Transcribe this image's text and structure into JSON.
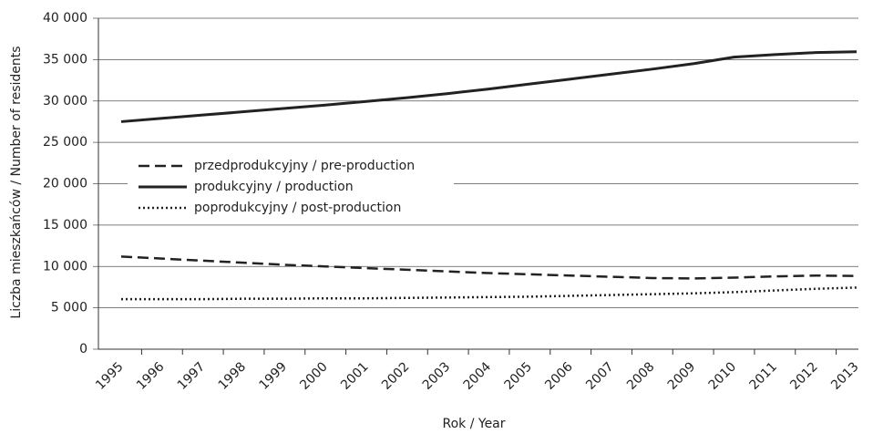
{
  "chart_data": {
    "type": "line",
    "y_label": "Liczba mieszkańców / Number of residents",
    "x_label": "Rok / Year",
    "categories": [
      "1995",
      "1996",
      "1997",
      "1998",
      "1999",
      "2000",
      "2001",
      "2002",
      "2003",
      "2004",
      "2005",
      "2006",
      "2007",
      "2008",
      "2009",
      "2010",
      "2011",
      "2012",
      "2013"
    ],
    "series": [
      {
        "name": "przedprodukcyjny / pre-production",
        "color": "#222222",
        "dash": "12,6",
        "values": [
          11200,
          10950,
          10700,
          10450,
          10200,
          10000,
          9800,
          9600,
          9400,
          9200,
          9050,
          8900,
          8750,
          8600,
          8550,
          8650,
          8800,
          8900,
          8850
        ]
      },
      {
        "name": "produkcyjny / production",
        "color": "#222222",
        "dash": "none",
        "values": [
          27500,
          27900,
          28300,
          28700,
          29100,
          29500,
          29950,
          30400,
          30900,
          31450,
          32050,
          32650,
          33250,
          33850,
          34500,
          35300,
          35600,
          35850,
          35950
        ]
      },
      {
        "name": "poprodukcyjny / post-production",
        "color": "#222222",
        "dash": "2,3",
        "values": [
          6050,
          6050,
          6050,
          6100,
          6100,
          6150,
          6150,
          6200,
          6250,
          6300,
          6350,
          6450,
          6550,
          6650,
          6750,
          6900,
          7100,
          7300,
          7450
        ]
      }
    ],
    "ylim": [
      0,
      40000
    ],
    "yticks": [
      {
        "value": 0,
        "label": "0"
      },
      {
        "value": 5000,
        "label": "5 000"
      },
      {
        "value": 10000,
        "label": "10 000"
      },
      {
        "value": 15000,
        "label": "15 000"
      },
      {
        "value": 20000,
        "label": "20 000"
      },
      {
        "value": 25000,
        "label": "25 000"
      },
      {
        "value": 30000,
        "label": "30 000"
      },
      {
        "value": 35000,
        "label": "35 000"
      },
      {
        "value": 40000,
        "label": "40 000"
      }
    ],
    "grid": true
  }
}
